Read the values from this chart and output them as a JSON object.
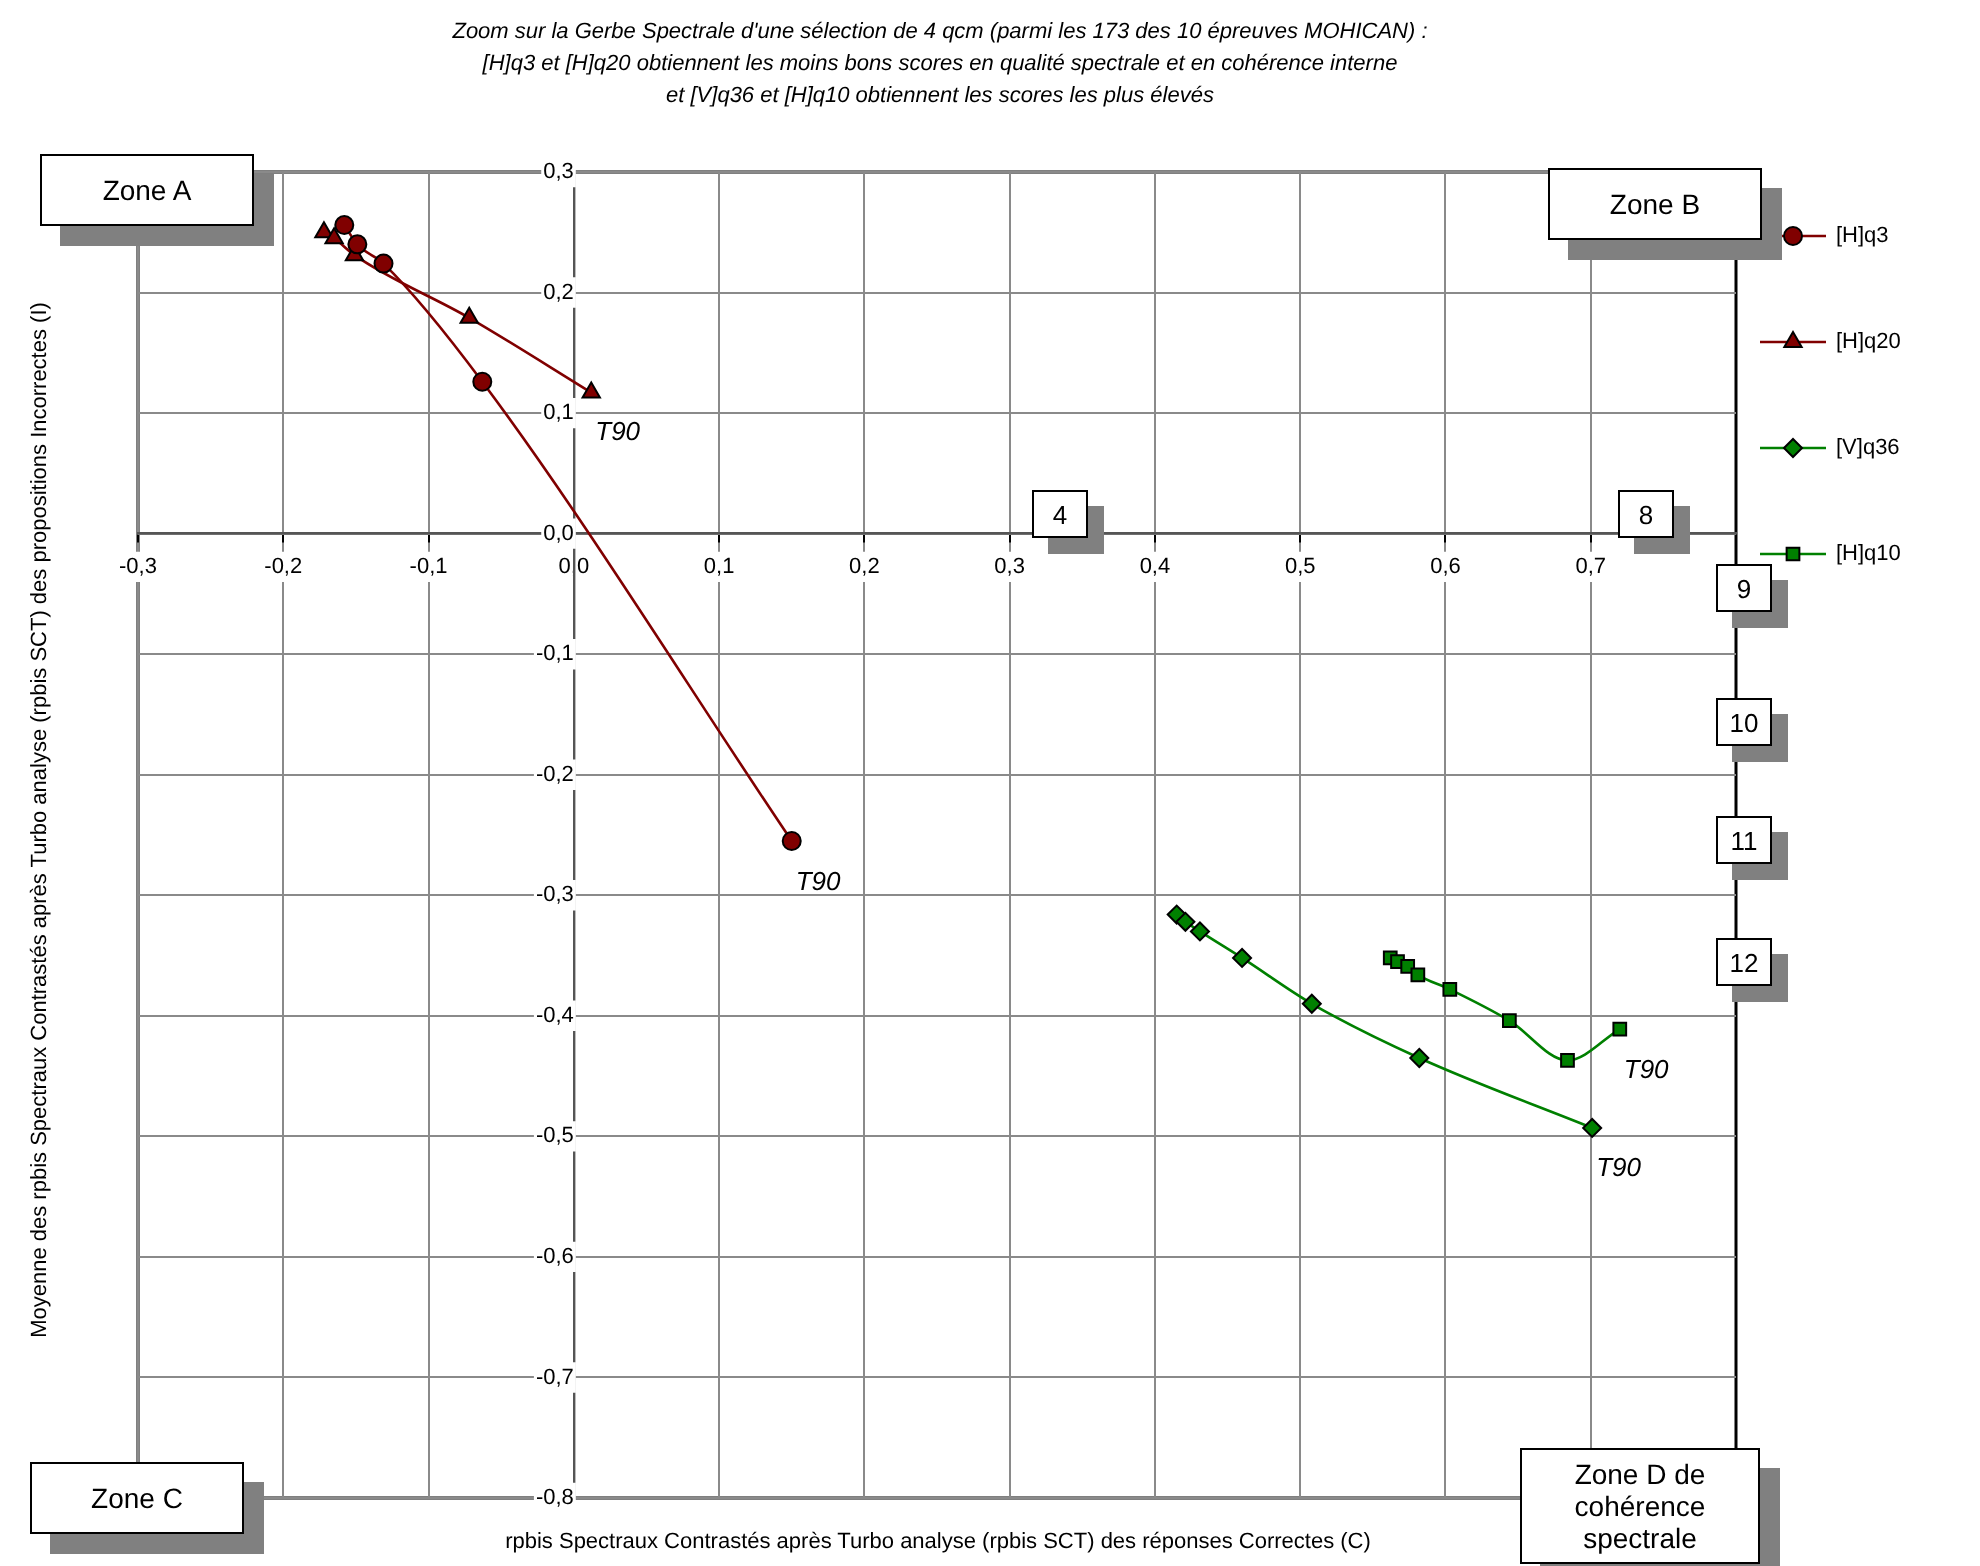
{
  "chart_data": {
    "type": "line",
    "title": "Zoom sur la Gerbe  Spectrale d'une sélection de 4 qcm (parmi les 173 des 10 épreuves MOHICAN) :\n[H]q3 et [H]q20 obtiennent les moins bons scores en qualité spectrale et en cohérence interne\net [V]q36 et [H]q10 obtiennent les scores les plus élevés",
    "xlabel": "rpbis Spectraux Contrastés après Turbo analyse (rpbis SCT) des réponses Correctes (C)",
    "ylabel": "Moyenne des rpbis Spectraux Contrastés après Turbo analyse (rpbis SCT) des propositions Incorrectes (I)",
    "series": [
      {
        "name": "[H]q3",
        "color": "#800000",
        "marker": "circle",
        "x": [
          -0.158,
          -0.149,
          -0.131,
          -0.063,
          0.15
        ],
        "values": [
          0.256,
          0.24,
          0.224,
          0.126,
          -0.255
        ]
      },
      {
        "name": "[H]q20",
        "color": "#800000",
        "marker": "triangle",
        "x": [
          -0.172,
          -0.165,
          -0.151,
          -0.072,
          0.012
        ],
        "values": [
          0.25,
          0.245,
          0.231,
          0.179,
          0.117
        ]
      },
      {
        "name": "[V]q36",
        "color": "#008000",
        "marker": "diamond",
        "x": [
          0.415,
          0.421,
          0.431,
          0.46,
          0.508,
          0.582,
          0.701
        ],
        "values": [
          -0.316,
          -0.322,
          -0.33,
          -0.352,
          -0.39,
          -0.435,
          -0.493
        ]
      },
      {
        "name": "[H]q10",
        "color": "#008000",
        "marker": "square",
        "x": [
          0.562,
          0.567,
          0.574,
          0.581,
          0.603,
          0.644,
          0.684,
          0.72
        ],
        "values": [
          -0.352,
          -0.355,
          -0.359,
          -0.366,
          -0.378,
          -0.404,
          -0.437,
          -0.411
        ]
      }
    ],
    "xlim": [
      -0.3,
      0.8
    ],
    "xticks": [
      {
        "value": -0.3,
        "label": "-0,3"
      },
      {
        "value": -0.2,
        "label": "-0,2"
      },
      {
        "value": -0.1,
        "label": "-0,1"
      },
      {
        "value": 0,
        "label": "0,0"
      },
      {
        "value": 0.1,
        "label": "0,1"
      },
      {
        "value": 0.2,
        "label": "0,2"
      },
      {
        "value": 0.3,
        "label": "0,3"
      },
      {
        "value": 0.4,
        "label": "0,4"
      },
      {
        "value": 0.5,
        "label": "0,5"
      },
      {
        "value": 0.6,
        "label": "0,6"
      },
      {
        "value": 0.7,
        "label": "0,7"
      }
    ],
    "ylim": [
      -0.8,
      0.3
    ],
    "yticks": [
      {
        "value": -0.8,
        "label": "-0,8"
      },
      {
        "value": -0.7,
        "label": "-0,7"
      },
      {
        "value": -0.6,
        "label": "-0,6"
      },
      {
        "value": -0.5,
        "label": "-0,5"
      },
      {
        "value": -0.4,
        "label": "-0,4"
      },
      {
        "value": -0.3,
        "label": "-0,3"
      },
      {
        "value": -0.2,
        "label": "-0,2"
      },
      {
        "value": -0.1,
        "label": "-0,1"
      },
      {
        "value": 0,
        "label": "0,0"
      },
      {
        "value": 0.1,
        "label": "0,1"
      },
      {
        "value": 0.2,
        "label": "0,2"
      },
      {
        "value": 0.3,
        "label": "0,3"
      }
    ],
    "grid": true,
    "legend": "right",
    "line_style": "solid",
    "annotations": [
      "Zone A",
      "Zone B",
      "Zone C",
      "Zone D de cohérence spectrale",
      "4",
      "8",
      "9",
      "10",
      "11",
      "12",
      {
        "text": "T90",
        "x": 0.15,
        "y": -0.255
      },
      {
        "text": "T90",
        "x": 0.012,
        "y": 0.117
      },
      {
        "text": "T90",
        "x": 0.701,
        "y": -0.493
      },
      {
        "text": "T90",
        "x": 0.72,
        "y": -0.411
      }
    ]
  }
}
